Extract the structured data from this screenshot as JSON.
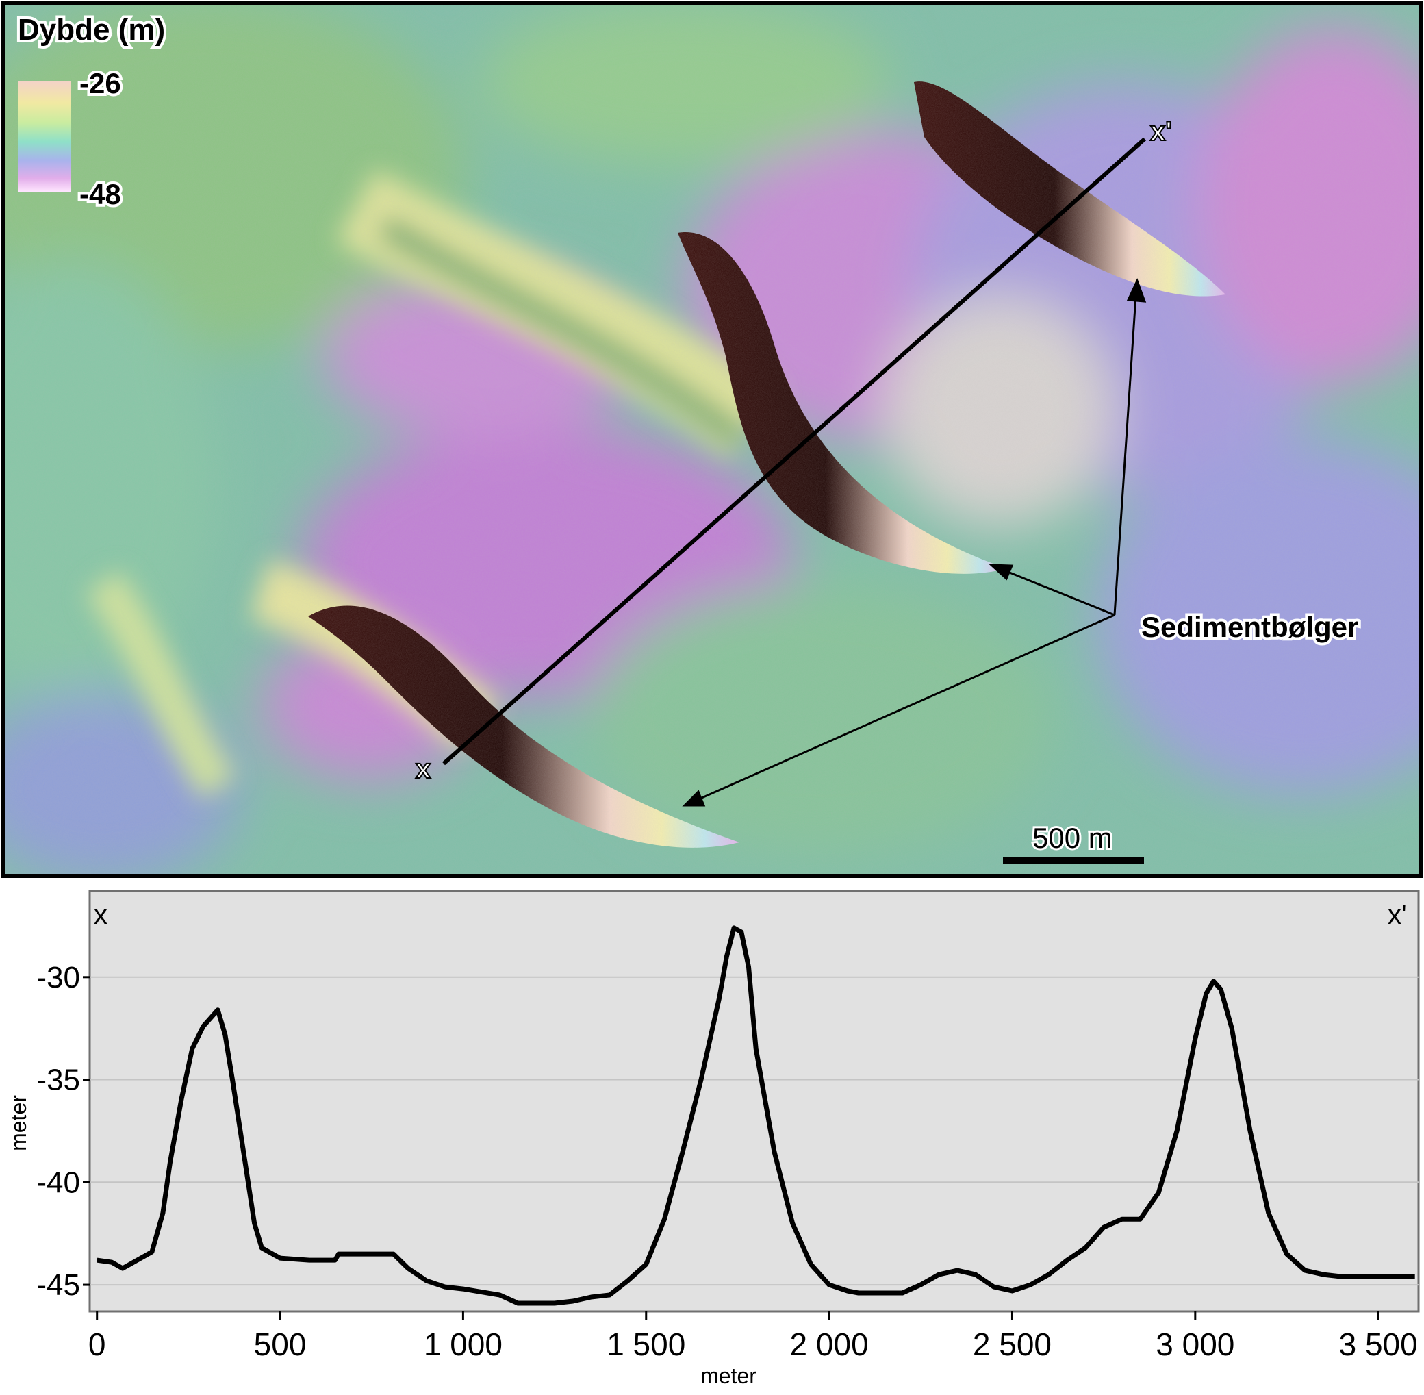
{
  "map": {
    "legend": {
      "title": "Dybde (m)",
      "max_label": "-26",
      "min_label": "-48",
      "colors": [
        "#f4d2c8",
        "#f1e9a2",
        "#c9eca0",
        "#8fe0c8",
        "#a9b3ec",
        "#e2aeea",
        "#ffe6ff"
      ]
    },
    "profile_start_label": "x",
    "profile_end_label": "x'",
    "feature_label": "Sedimentbølger",
    "scale_bar_label": "500 m",
    "palette": {
      "frame": "#000000",
      "crest": "#3a0d0a",
      "text_halo": "#ffffff"
    }
  },
  "chart_data": {
    "type": "line",
    "title": "",
    "xlabel": "meter",
    "ylabel": "meter",
    "xlim": [
      -20,
      3610
    ],
    "ylim": [
      -46.3,
      -25.8
    ],
    "x_ticks": [
      0,
      500,
      1000,
      1500,
      2000,
      2500,
      3000,
      3500
    ],
    "x_tick_labels": [
      "0",
      "500",
      "1 000",
      "1 500",
      "2 000",
      "2 500",
      "3 000",
      "3 500"
    ],
    "y_ticks": [
      -30,
      -35,
      -40,
      -45
    ],
    "y_tick_labels": [
      "-30",
      "-35",
      "-40",
      "-45"
    ],
    "grid": "horizontal",
    "corner_labels": {
      "left": "x",
      "right": "x'"
    },
    "series": [
      {
        "x": [
          0,
          40,
          70,
          100,
          150,
          180,
          200,
          230,
          260,
          290,
          310,
          330,
          350,
          370,
          400,
          430,
          450,
          500,
          580,
          650,
          660,
          700,
          750,
          810,
          850,
          900,
          950,
          1000,
          1100,
          1150,
          1250,
          1300,
          1350,
          1400,
          1450,
          1500,
          1550,
          1600,
          1650,
          1700,
          1720,
          1740,
          1760,
          1780,
          1800,
          1850,
          1900,
          1950,
          2000,
          2050,
          2080,
          2100,
          2150,
          2200,
          2250,
          2300,
          2350,
          2400,
          2450,
          2500,
          2550,
          2600,
          2650,
          2700,
          2750,
          2800,
          2820,
          2850,
          2900,
          2950,
          3000,
          3030,
          3050,
          3070,
          3100,
          3150,
          3200,
          3250,
          3300,
          3350,
          3400,
          3500,
          3600
        ],
        "y": [
          -43.8,
          -43.9,
          -44.2,
          -43.9,
          -43.4,
          -41.5,
          -39.0,
          -36.0,
          -33.5,
          -32.4,
          -32.0,
          -31.6,
          -32.8,
          -35.0,
          -38.5,
          -42.0,
          -43.2,
          -43.7,
          -43.8,
          -43.8,
          -43.5,
          -43.5,
          -43.5,
          -43.5,
          -44.2,
          -44.8,
          -45.1,
          -45.2,
          -45.5,
          -45.9,
          -45.9,
          -45.8,
          -45.6,
          -45.5,
          -44.8,
          -44.0,
          -41.8,
          -38.5,
          -35.0,
          -31.0,
          -29.0,
          -27.6,
          -27.8,
          -29.5,
          -33.5,
          -38.5,
          -42.0,
          -44.0,
          -45.0,
          -45.3,
          -45.4,
          -45.4,
          -45.4,
          -45.4,
          -45.0,
          -44.5,
          -44.3,
          -44.5,
          -45.1,
          -45.3,
          -45.0,
          -44.5,
          -43.8,
          -43.2,
          -42.2,
          -41.8,
          -41.8,
          -41.8,
          -40.5,
          -37.5,
          -33.0,
          -30.8,
          -30.2,
          -30.6,
          -32.5,
          -37.5,
          -41.5,
          -43.5,
          -44.3,
          -44.5,
          -44.6,
          -44.6,
          -44.6
        ]
      }
    ]
  }
}
